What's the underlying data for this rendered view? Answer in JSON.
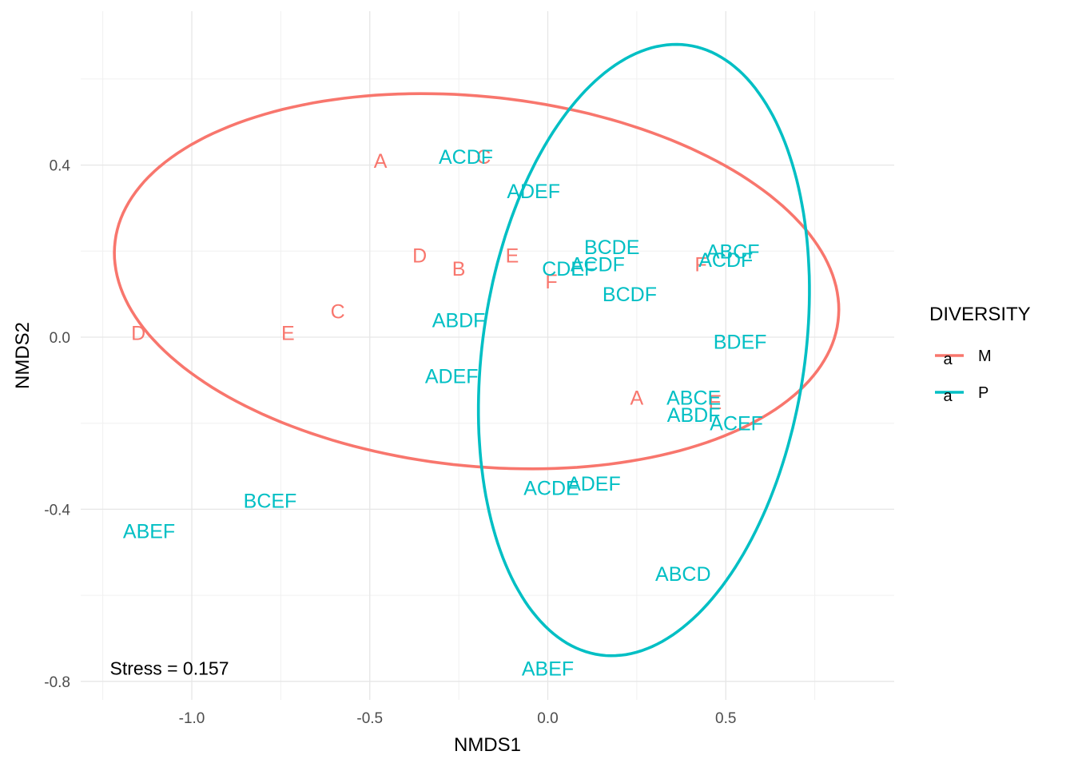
{
  "chart_data": {
    "type": "scatter",
    "xlabel": "NMDS1",
    "ylabel": "NMDS2",
    "xlim": [
      -1.25,
      0.97
    ],
    "ylim": [
      -0.84,
      0.64
    ],
    "x_ticks": [
      {
        "value": -1.0,
        "label": "-1.0"
      },
      {
        "value": -0.5,
        "label": "-0.5"
      },
      {
        "value": 0.0,
        "label": "0.0"
      },
      {
        "value": 0.5,
        "label": "0.5"
      }
    ],
    "y_ticks": [
      {
        "value": 0.4,
        "label": "0.4"
      },
      {
        "value": 0.0,
        "label": "0.0"
      },
      {
        "value": -0.4,
        "label": "-0.4"
      },
      {
        "value": -0.8,
        "label": "-0.8"
      }
    ],
    "grid": true,
    "legend": {
      "title": "DIVERSITY",
      "position": "right",
      "key_glyph": "a",
      "entries": [
        {
          "name": "M",
          "color": "#F8766D"
        },
        {
          "name": "P",
          "color": "#00BFC4"
        }
      ]
    },
    "series": [
      {
        "name": "M",
        "color": "#F8766D",
        "points": [
          {
            "label": "A",
            "x": -0.47,
            "y": 0.41
          },
          {
            "label": "C",
            "x": -0.18,
            "y": 0.42
          },
          {
            "label": "D",
            "x": -0.36,
            "y": 0.19
          },
          {
            "label": "B",
            "x": -0.25,
            "y": 0.16
          },
          {
            "label": "E",
            "x": -0.1,
            "y": 0.19
          },
          {
            "label": "F",
            "x": 0.01,
            "y": 0.13
          },
          {
            "label": "C",
            "x": -0.59,
            "y": 0.06
          },
          {
            "label": "D",
            "x": -1.15,
            "y": 0.01
          },
          {
            "label": "E",
            "x": -0.73,
            "y": 0.01
          },
          {
            "label": "A",
            "x": 0.25,
            "y": -0.14
          },
          {
            "label": "E",
            "x": 0.47,
            "y": -0.15
          },
          {
            "label": "F",
            "x": 0.43,
            "y": 0.17
          }
        ]
      },
      {
        "name": "P",
        "color": "#00BFC4",
        "points": [
          {
            "label": "ACDF",
            "x": -0.23,
            "y": 0.42
          },
          {
            "label": "ADEF",
            "x": -0.04,
            "y": 0.34
          },
          {
            "label": "BCDE",
            "x": 0.18,
            "y": 0.21
          },
          {
            "label": "ACDF",
            "x": 0.14,
            "y": 0.17
          },
          {
            "label": "CDEF",
            "x": 0.06,
            "y": 0.16
          },
          {
            "label": "BCDF",
            "x": 0.23,
            "y": 0.1
          },
          {
            "label": "ABCF",
            "x": 0.52,
            "y": 0.2
          },
          {
            "label": "ACDF",
            "x": 0.5,
            "y": 0.18
          },
          {
            "label": "ABDF",
            "x": -0.25,
            "y": 0.04
          },
          {
            "label": "BDEF",
            "x": 0.54,
            "y": -0.01
          },
          {
            "label": "ADEF",
            "x": -0.27,
            "y": -0.09
          },
          {
            "label": "ABCE",
            "x": 0.41,
            "y": -0.14
          },
          {
            "label": "ABDF",
            "x": 0.41,
            "y": -0.18
          },
          {
            "label": "ACEF",
            "x": 0.53,
            "y": -0.2
          },
          {
            "label": "ACDE",
            "x": 0.01,
            "y": -0.35
          },
          {
            "label": "ADEF",
            "x": 0.13,
            "y": -0.34
          },
          {
            "label": "BCEF",
            "x": -0.78,
            "y": -0.38
          },
          {
            "label": "ABEF",
            "x": -1.12,
            "y": -0.45
          },
          {
            "label": "ABCD",
            "x": 0.38,
            "y": -0.55
          },
          {
            "label": "ABEF",
            "x": 0.0,
            "y": -0.77
          }
        ]
      }
    ],
    "ellipses": [
      {
        "group": "M",
        "cx": -0.2,
        "cy": 0.13,
        "rx": 1.02,
        "ry": 0.43,
        "angle": -4.5
      },
      {
        "group": "P",
        "cx": 0.27,
        "cy": -0.03,
        "rx": 0.45,
        "ry": 0.72,
        "angle": -12
      }
    ],
    "annotations": [
      {
        "text": "Stress = 0.157",
        "x": -1.23,
        "y": -0.77
      }
    ]
  }
}
